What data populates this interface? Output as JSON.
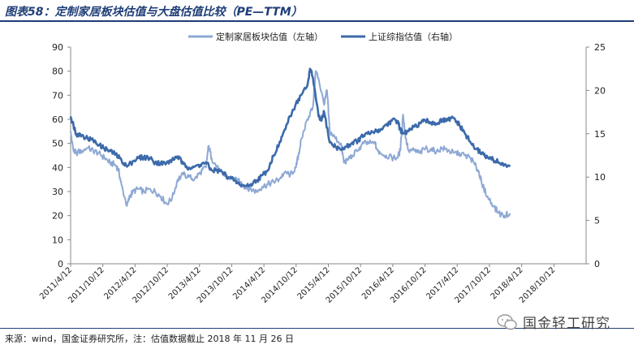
{
  "title": "图表58：定制家居板块估值与大盘估值比较（PE—TTM）",
  "source": "来源：wind，国金证券研究所，注：估值数据截止 2018 年 11 月 26 日",
  "watermark": "国金轻工研究",
  "colors": {
    "title": "#1f3e77",
    "s1": "#8ea8d4",
    "s2": "#3c6aaa"
  },
  "chart_data": {
    "type": "line",
    "title": "定制家居板块估值与大盘估值比较（PE—TTM）",
    "legend_position": "top-center",
    "x_tick_labels": [
      "2011/4/12",
      "2011/10/12",
      "2012/4/12",
      "2012/10/12",
      "2013/4/12",
      "2013/10/12",
      "2014/4/12",
      "2014/10/12",
      "2015/4/12",
      "2015/10/12",
      "2016/4/12",
      "2016/10/12",
      "2017/4/12",
      "2017/10/12",
      "2018/4/12",
      "2018/10/12"
    ],
    "x_range": [
      0,
      91.5
    ],
    "y_left": {
      "min": 0,
      "max": 90,
      "ticks": [
        0,
        10,
        20,
        30,
        40,
        50,
        60,
        70,
        80,
        90
      ]
    },
    "y_right": {
      "min": 0,
      "max": 25,
      "ticks": [
        0,
        5,
        10,
        15,
        20,
        25
      ]
    },
    "series": [
      {
        "name": "定制家居板块估值（左轴）",
        "axis": "left",
        "points": [
          [
            0,
            55
          ],
          [
            0.5,
            47
          ],
          [
            1,
            46
          ],
          [
            2,
            47
          ],
          [
            3,
            48
          ],
          [
            4,
            47
          ],
          [
            5,
            46
          ],
          [
            6,
            44
          ],
          [
            7,
            42
          ],
          [
            8,
            41
          ],
          [
            8.5,
            39
          ],
          [
            9,
            33
          ],
          [
            10,
            24
          ],
          [
            10.5,
            28
          ],
          [
            11,
            30
          ],
          [
            12,
            31
          ],
          [
            13,
            30
          ],
          [
            14,
            31
          ],
          [
            15,
            30
          ],
          [
            16,
            28
          ],
          [
            17,
            25
          ],
          [
            18,
            27
          ],
          [
            19,
            35
          ],
          [
            20,
            37
          ],
          [
            21,
            36
          ],
          [
            22,
            35
          ],
          [
            23,
            38
          ],
          [
            24,
            40
          ],
          [
            24.5,
            49
          ],
          [
            25,
            44
          ],
          [
            26,
            40
          ],
          [
            27,
            37
          ],
          [
            28,
            36
          ],
          [
            29,
            35
          ],
          [
            30,
            34
          ],
          [
            31,
            32
          ],
          [
            32,
            31
          ],
          [
            33,
            30
          ],
          [
            34,
            32
          ],
          [
            35,
            33
          ],
          [
            36,
            34
          ],
          [
            37,
            35
          ],
          [
            38,
            38
          ],
          [
            39,
            37
          ],
          [
            40,
            40
          ],
          [
            40.5,
            46
          ],
          [
            41,
            52
          ],
          [
            42,
            60
          ],
          [
            43,
            65
          ],
          [
            43.5,
            80
          ],
          [
            44,
            77
          ],
          [
            45,
            66
          ],
          [
            45.5,
            72
          ],
          [
            46,
            55
          ],
          [
            47,
            52
          ],
          [
            48,
            50
          ],
          [
            48.5,
            42
          ],
          [
            49,
            43
          ],
          [
            50,
            45
          ],
          [
            51,
            47
          ],
          [
            52,
            50
          ],
          [
            53,
            50
          ],
          [
            54,
            50
          ],
          [
            54.5,
            47
          ],
          [
            55,
            46
          ],
          [
            56,
            45
          ],
          [
            57,
            44
          ],
          [
            58,
            44
          ],
          [
            58.5,
            47
          ],
          [
            59,
            62
          ],
          [
            59.5,
            52
          ],
          [
            60,
            47
          ],
          [
            61,
            47
          ],
          [
            62,
            46
          ],
          [
            63,
            48
          ],
          [
            64,
            47
          ],
          [
            65,
            47
          ],
          [
            66,
            48
          ],
          [
            67,
            47
          ],
          [
            68,
            46
          ],
          [
            69,
            46
          ],
          [
            70,
            45
          ],
          [
            71,
            44
          ],
          [
            72,
            40
          ],
          [
            72.5,
            38
          ],
          [
            73,
            33
          ],
          [
            74,
            28
          ],
          [
            75,
            24
          ],
          [
            76,
            21
          ],
          [
            77,
            20
          ],
          [
            78,
            21
          ]
        ]
      },
      {
        "name": "上证综指估值（右轴）",
        "axis": "right",
        "points": [
          [
            0,
            17
          ],
          [
            0.5,
            16
          ],
          [
            1,
            15
          ],
          [
            2,
            14.8
          ],
          [
            3,
            14.5
          ],
          [
            4,
            14.2
          ],
          [
            5,
            13.7
          ],
          [
            6,
            13.3
          ],
          [
            7,
            13
          ],
          [
            8,
            12.6
          ],
          [
            9,
            12
          ],
          [
            10,
            11.2
          ],
          [
            11,
            11.8
          ],
          [
            12,
            12.2
          ],
          [
            13,
            12.3
          ],
          [
            14,
            12.2
          ],
          [
            15,
            11.7
          ],
          [
            16,
            11.6
          ],
          [
            17,
            11.6
          ],
          [
            18,
            12
          ],
          [
            19,
            12.4
          ],
          [
            20,
            11.5
          ],
          [
            21,
            11.1
          ],
          [
            22,
            11.2
          ],
          [
            23,
            11.4
          ],
          [
            24,
            11.7
          ],
          [
            25,
            10.8
          ],
          [
            26,
            10.8
          ],
          [
            27,
            10.5
          ],
          [
            28,
            10
          ],
          [
            29,
            9.6
          ],
          [
            30,
            9.1
          ],
          [
            31,
            9
          ],
          [
            32,
            9.2
          ],
          [
            33,
            9.6
          ],
          [
            34,
            10.2
          ],
          [
            35,
            10.8
          ],
          [
            36,
            12.5
          ],
          [
            37,
            13.8
          ],
          [
            38,
            15.5
          ],
          [
            39,
            17
          ],
          [
            40,
            18.5
          ],
          [
            41,
            19.5
          ],
          [
            42,
            20.5
          ],
          [
            42.5,
            22.5
          ],
          [
            43,
            21.5
          ],
          [
            44,
            17
          ],
          [
            44.5,
            16.5
          ],
          [
            45,
            17.5
          ],
          [
            46,
            14
          ],
          [
            47,
            13.5
          ],
          [
            48,
            13.2
          ],
          [
            49,
            13.5
          ],
          [
            50,
            14
          ],
          [
            51,
            14.2
          ],
          [
            52,
            14.8
          ],
          [
            53,
            15
          ],
          [
            54,
            15.3
          ],
          [
            55,
            15.5
          ],
          [
            56,
            16
          ],
          [
            57,
            16.5
          ],
          [
            58,
            16.5
          ],
          [
            58.5,
            15.5
          ],
          [
            59,
            15
          ],
          [
            60,
            15.3
          ],
          [
            61,
            15.8
          ],
          [
            62,
            16.2
          ],
          [
            63,
            16.5
          ],
          [
            64,
            16.3
          ],
          [
            65,
            16.2
          ],
          [
            66,
            16.5
          ],
          [
            67,
            16.6
          ],
          [
            68,
            16.8
          ],
          [
            69,
            16
          ],
          [
            70,
            15
          ],
          [
            71,
            14
          ],
          [
            72,
            13.2
          ],
          [
            73,
            12.8
          ],
          [
            74,
            12.3
          ],
          [
            75,
            12
          ],
          [
            76,
            11.7
          ],
          [
            77,
            11.4
          ],
          [
            78,
            11.4
          ]
        ]
      }
    ]
  }
}
